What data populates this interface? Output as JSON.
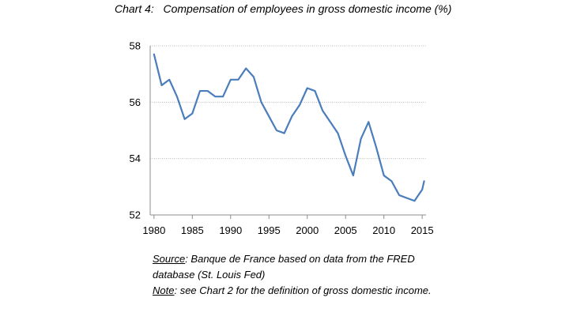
{
  "chart_data": {
    "type": "line",
    "title": "Chart 4:   Compensation of employees in gross domestic income (%)",
    "xlabel": "",
    "ylabel": "",
    "xlim": [
      1979.5,
      2015.5
    ],
    "ylim": [
      52,
      58
    ],
    "x_ticks": [
      1980,
      1985,
      1990,
      1995,
      2000,
      2005,
      2010,
      2015
    ],
    "y_ticks": [
      52,
      54,
      56,
      58
    ],
    "grid": "horizontal",
    "color": "#4a7dbb",
    "series": [
      {
        "x": [
          1980,
          1981,
          1982,
          1983,
          1984,
          1985,
          1986,
          1987,
          1988,
          1989,
          1990,
          1991,
          1992,
          1993,
          1994,
          1995,
          1996,
          1997,
          1998,
          1999,
          2000,
          2001,
          2002,
          2003,
          2004,
          2005,
          2006,
          2007,
          2008,
          2009,
          2010,
          2011,
          2012,
          2013,
          2014,
          2015,
          2015.25
        ],
        "y": [
          57.7,
          56.6,
          56.8,
          56.2,
          55.4,
          55.6,
          56.4,
          56.4,
          56.2,
          56.2,
          56.8,
          56.8,
          57.2,
          56.9,
          56.0,
          55.5,
          55.0,
          54.9,
          55.5,
          55.9,
          56.5,
          56.4,
          55.7,
          55.3,
          54.9,
          54.1,
          53.4,
          54.7,
          55.3,
          54.4,
          53.4,
          53.2,
          52.7,
          52.6,
          52.5,
          52.9,
          53.2
        ]
      }
    ]
  },
  "notes": {
    "source_label": "Source",
    "source_text": ": Banque de France based on data from the FRED database (St. Louis Fed)",
    "note_label": "Note",
    "note_text": ": see Chart 2 for the definition of gross domestic income."
  }
}
